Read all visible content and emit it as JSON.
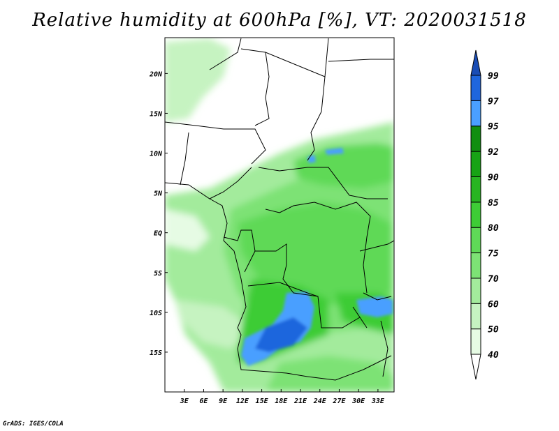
{
  "title": "Relative humidity at 600hPa [%], VT: 2020031518",
  "credit": "GrADS: IGES/COLA",
  "lat_ticks": [
    "20N",
    "15N",
    "10N",
    "5N",
    "EQ",
    "5S",
    "10S",
    "15S"
  ],
  "lon_ticks": [
    "3E",
    "6E",
    "9E",
    "12E",
    "15E",
    "18E",
    "21E",
    "24E",
    "27E",
    "30E",
    "33E"
  ],
  "colorbar": {
    "levels": [
      "40",
      "50",
      "60",
      "70",
      "75",
      "80",
      "85",
      "90",
      "92",
      "95",
      "97",
      "99"
    ],
    "colors": [
      "#ffffff",
      "#e6fbe4",
      "#c6f3c1",
      "#a3eb9c",
      "#7de275",
      "#5fd957",
      "#3ecc36",
      "#28b522",
      "#17a315",
      "#118e10",
      "#4a9fff",
      "#1f66dd",
      "#1a4db5"
    ]
  },
  "map": {
    "lat_range": [
      -20,
      24.5
    ],
    "lon_range": [
      0,
      35.5
    ]
  }
}
